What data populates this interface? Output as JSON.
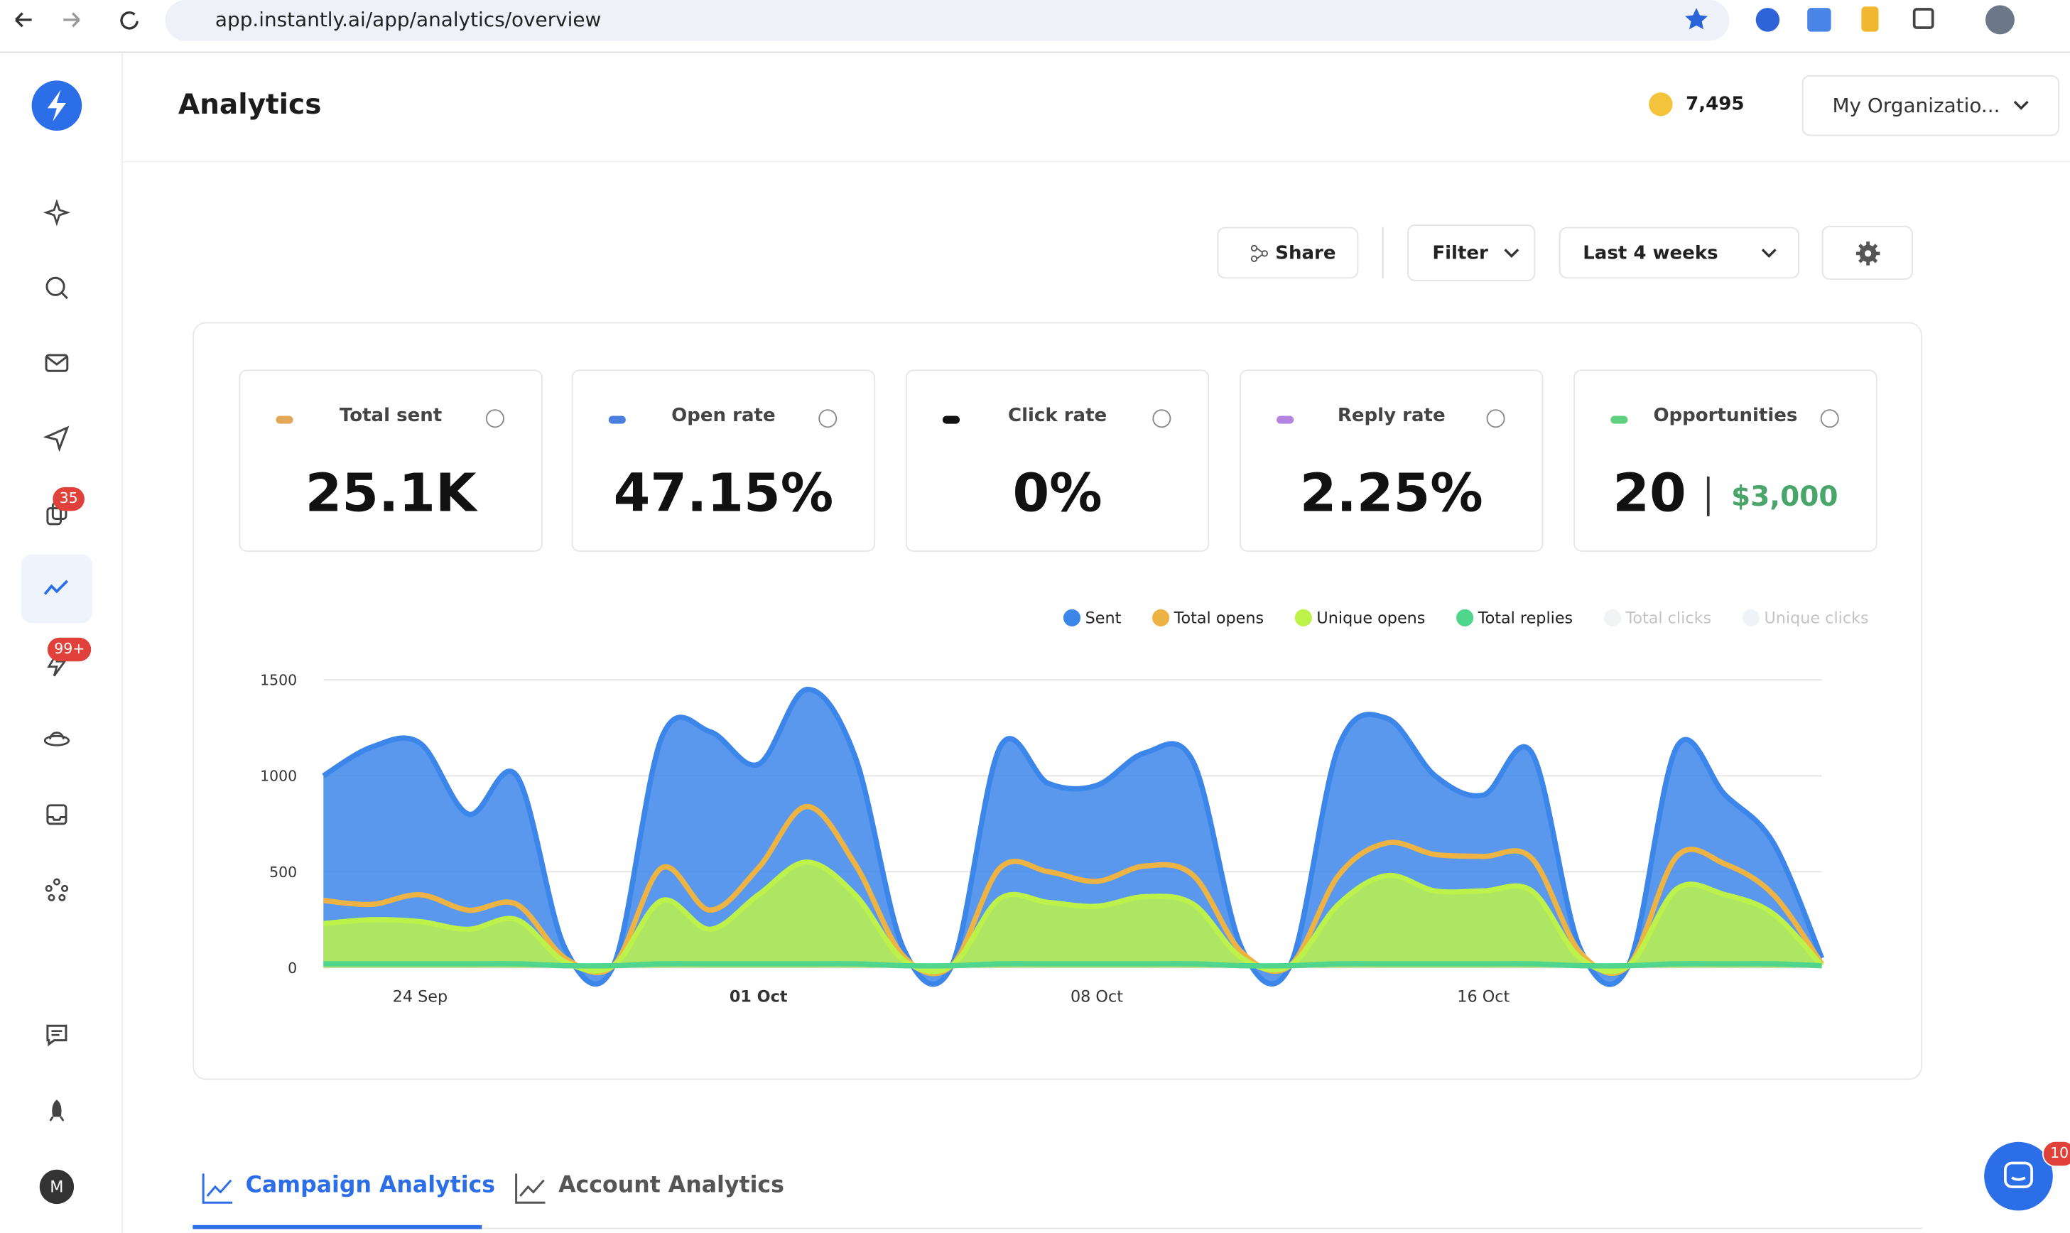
{
  "browser": {
    "url": "app.instantly.ai/app/analytics/overview"
  },
  "sidebar": {
    "badges": [
      "35",
      "99+"
    ],
    "avatar": "M"
  },
  "header": {
    "title": "Analytics",
    "credits": "7,495",
    "organization": "My Organizatio..."
  },
  "toolbar": {
    "share": "Share",
    "filter": "Filter",
    "range": "Last 4 weeks"
  },
  "stats": [
    {
      "label": "Total sent",
      "value": "25.1K",
      "color": "#e2a857"
    },
    {
      "label": "Open rate",
      "value": "47.15%",
      "color": "#4a7fe0"
    },
    {
      "label": "Click rate",
      "value": "0%",
      "color": "#111111"
    },
    {
      "label": "Reply rate",
      "value": "2.25%",
      "color": "#b484e0"
    },
    {
      "label": "Opportunities",
      "value": "20",
      "extra": "$3,000",
      "color": "#5fd07f"
    }
  ],
  "chart_data": {
    "type": "area",
    "categories": [
      null,
      null,
      "24 Sep",
      null,
      null,
      null,
      null,
      null,
      null,
      "01 Oct",
      null,
      null,
      null,
      null,
      null,
      null,
      "08 Oct",
      null,
      null,
      null,
      null,
      null,
      null,
      null,
      "16 Oct",
      null,
      null,
      null,
      null,
      null,
      null,
      null
    ],
    "ylim": [
      0,
      1500
    ],
    "yticks": [
      0,
      500,
      1000,
      1500
    ],
    "grid": true,
    "series": [
      {
        "name": "Sent",
        "color": "#3c86ea",
        "fill": true,
        "values": [
          1000,
          1150,
          1170,
          800,
          1000,
          100,
          0,
          1200,
          1230,
          1060,
          1450,
          1100,
          100,
          0,
          1150,
          960,
          950,
          1120,
          1070,
          100,
          0,
          1150,
          1300,
          1000,
          900,
          1120,
          100,
          0,
          1150,
          900,
          650,
          50
        ]
      },
      {
        "name": "Total opens",
        "color": "#eeb443",
        "fill": false,
        "values": [
          350,
          330,
          380,
          300,
          330,
          50,
          0,
          520,
          300,
          520,
          840,
          540,
          60,
          0,
          520,
          500,
          450,
          530,
          480,
          80,
          0,
          480,
          650,
          590,
          580,
          570,
          80,
          0,
          580,
          540,
          380,
          20
        ]
      },
      {
        "name": "Unique opens",
        "color": "#bdf24a",
        "fill": true,
        "values": [
          230,
          250,
          240,
          200,
          250,
          30,
          0,
          350,
          200,
          380,
          550,
          380,
          40,
          0,
          360,
          340,
          320,
          370,
          330,
          50,
          0,
          330,
          480,
          400,
          400,
          400,
          50,
          0,
          410,
          380,
          280,
          10
        ]
      },
      {
        "name": "Total replies",
        "color": "#4fd58c",
        "fill": false,
        "values": [
          20,
          20,
          20,
          20,
          20,
          5,
          0,
          20,
          20,
          20,
          20,
          20,
          5,
          0,
          20,
          20,
          20,
          20,
          20,
          5,
          0,
          20,
          20,
          20,
          20,
          20,
          5,
          0,
          20,
          20,
          20,
          5
        ]
      },
      {
        "name": "Total clicks",
        "color": "#f1f3f4",
        "hidden": true
      },
      {
        "name": "Unique clicks",
        "color": "#eef3f8",
        "hidden": true
      }
    ]
  },
  "tabs": [
    "Campaign Analytics",
    "Account Analytics"
  ],
  "chat": {
    "badge": "10"
  }
}
